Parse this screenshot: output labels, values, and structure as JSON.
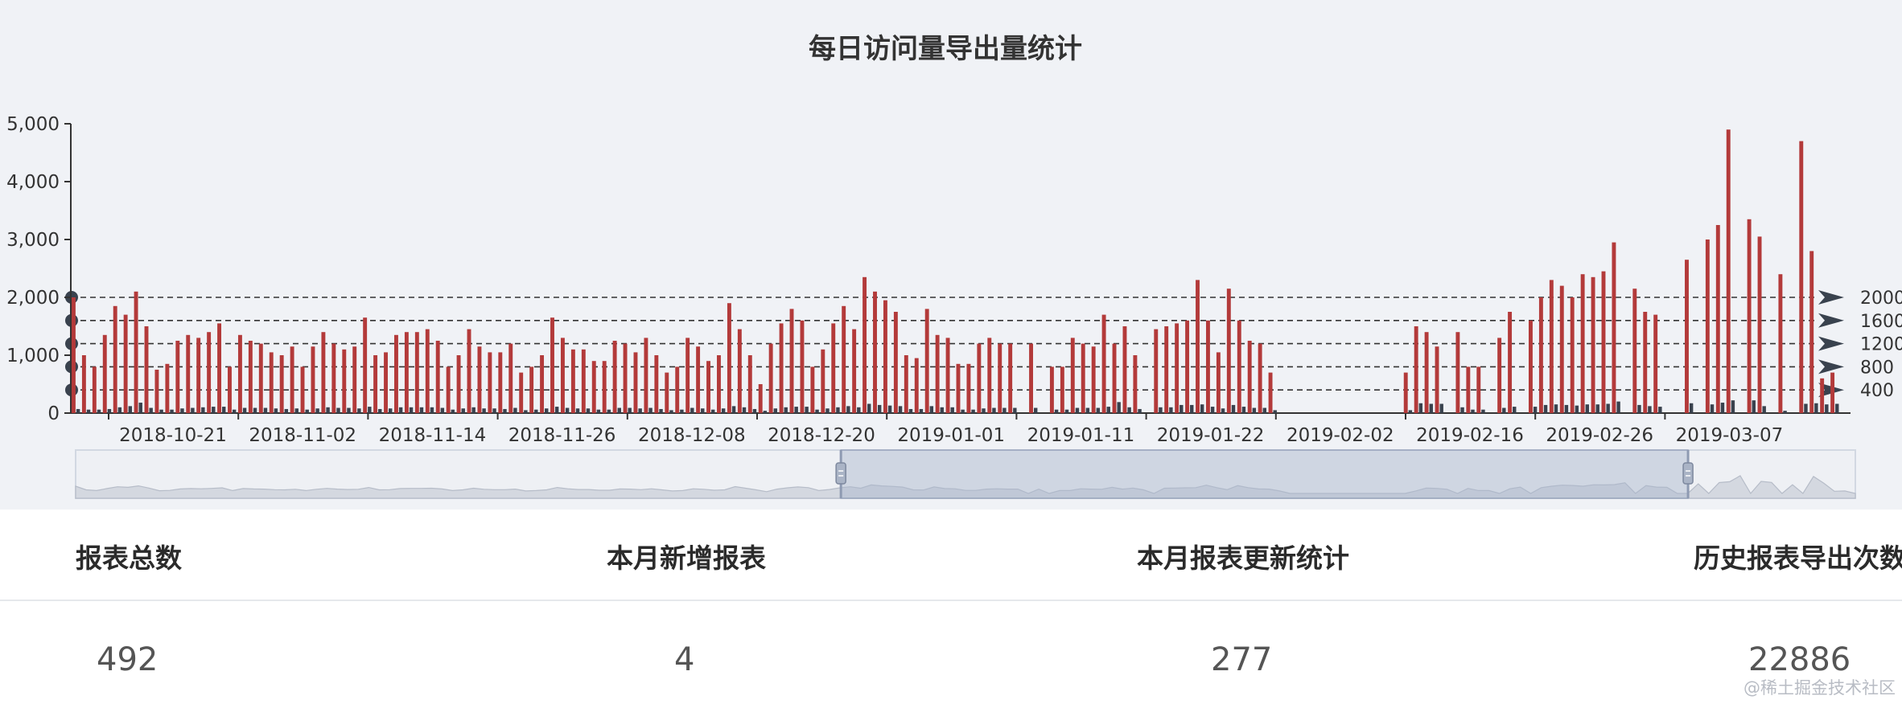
{
  "chart_data": {
    "type": "bar",
    "title": "每日访问量导出量统计",
    "ylim": [
      0,
      5000
    ],
    "yticks": [
      "0",
      "1,000",
      "2,000",
      "3,000",
      "4,000",
      "5,000"
    ],
    "xticks": [
      "2018-10-21",
      "2018-11-02",
      "2018-11-14",
      "2018-11-26",
      "2018-12-08",
      "2018-12-20",
      "2019-01-01",
      "2019-01-11",
      "2019-01-22",
      "2019-02-02",
      "2019-02-16",
      "2019-02-26",
      "2019-03-07"
    ],
    "reference_lines": [
      {
        "value": 2000,
        "label": "2000"
      },
      {
        "value": 1600,
        "label": "1600"
      },
      {
        "value": 1200,
        "label": "1200"
      },
      {
        "value": 800,
        "label": "800"
      },
      {
        "value": 400,
        "label": "400"
      }
    ],
    "grid": false,
    "legend": "none",
    "dataZoom": {
      "start": 0.43,
      "end": 0.906
    },
    "series": [
      {
        "color": "#b33a3a",
        "values": [
          2000,
          1000,
          800,
          1350,
          1850,
          1700,
          2100,
          1500,
          750,
          850,
          1250,
          1350,
          1300,
          1400,
          1550,
          800,
          1350,
          1250,
          1200,
          1050,
          1000,
          1150,
          800,
          1150,
          1400,
          1200,
          1100,
          1150,
          1650,
          1000,
          1050,
          1350,
          1400,
          1400,
          1450,
          1250,
          800,
          1000,
          1450,
          1150,
          1050,
          1050,
          1200,
          700,
          800,
          1000,
          1650,
          1300,
          1100,
          1100,
          900,
          900,
          1250,
          1200,
          1050,
          1300,
          1000,
          700,
          800,
          1300,
          1150,
          900,
          1000,
          1900,
          1450,
          1000,
          500,
          1200,
          1550,
          1800,
          1600,
          800,
          1100,
          1550,
          1850,
          1450,
          2350,
          2100,
          1950,
          1750,
          1000,
          950,
          1800,
          1350,
          1300,
          850,
          850,
          1200,
          1300,
          1200,
          1200,
          0,
          1200,
          0,
          800,
          800,
          1300,
          1200,
          1150,
          1700,
          1200,
          1500,
          1000,
          0,
          1450,
          1500,
          1550,
          1600,
          2300,
          1600,
          1050,
          2150,
          1600,
          1250,
          1200,
          700,
          0,
          0,
          0,
          0,
          0,
          0,
          0,
          0,
          0,
          0,
          0,
          0,
          700,
          1500,
          1400,
          1150,
          0,
          1400,
          800,
          800,
          0,
          1300,
          1750,
          0,
          1600,
          2000,
          2300,
          2200,
          2000,
          2400,
          2350,
          2450,
          2950,
          0,
          2150,
          1750,
          1700,
          0,
          0,
          2650,
          0,
          3000,
          3250,
          4900,
          0,
          3350,
          3050,
          0,
          2400,
          0,
          4700,
          2800,
          600,
          700,
          0
        ]
      },
      {
        "color": "#39424e",
        "values": [
          70,
          60,
          60,
          70,
          100,
          120,
          180,
          90,
          60,
          60,
          80,
          90,
          100,
          110,
          110,
          60,
          90,
          90,
          90,
          80,
          70,
          80,
          60,
          80,
          100,
          90,
          90,
          80,
          110,
          70,
          80,
          100,
          100,
          100,
          100,
          90,
          60,
          80,
          100,
          80,
          80,
          70,
          90,
          50,
          60,
          80,
          110,
          90,
          80,
          80,
          60,
          60,
          90,
          90,
          80,
          90,
          70,
          50,
          60,
          90,
          80,
          60,
          80,
          120,
          100,
          70,
          40,
          80,
          100,
          110,
          110,
          60,
          80,
          100,
          120,
          100,
          160,
          140,
          130,
          120,
          70,
          70,
          120,
          100,
          100,
          60,
          60,
          80,
          90,
          90,
          90,
          0,
          90,
          0,
          60,
          60,
          90,
          90,
          90,
          110,
          190,
          100,
          70,
          0,
          100,
          100,
          140,
          140,
          150,
          110,
          80,
          140,
          110,
          90,
          90,
          50,
          0,
          0,
          0,
          0,
          0,
          0,
          0,
          0,
          0,
          0,
          0,
          0,
          50,
          170,
          160,
          160,
          0,
          100,
          60,
          60,
          0,
          90,
          110,
          0,
          110,
          140,
          150,
          140,
          130,
          150,
          150,
          160,
          200,
          0,
          140,
          120,
          110,
          0,
          0,
          170,
          0,
          150,
          180,
          220,
          0,
          220,
          120,
          0,
          40,
          0,
          160,
          170,
          150,
          160,
          0
        ]
      }
    ]
  },
  "stats": [
    {
      "label": "报表总数",
      "value": "492"
    },
    {
      "label": "本月新增报表",
      "value": "4"
    },
    {
      "label": "本月报表更新统计",
      "value": "277"
    },
    {
      "label": "历史报表导出次数",
      "value": "22886"
    }
  ],
  "watermark": "@稀土掘金技术社区"
}
